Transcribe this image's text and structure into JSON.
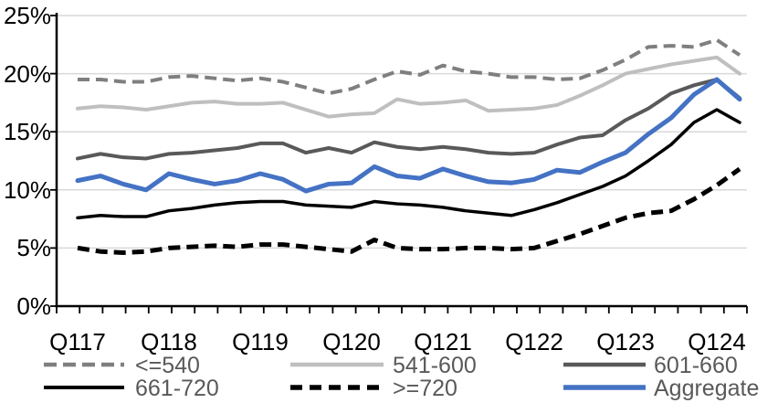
{
  "chart_data": {
    "type": "line",
    "title": "",
    "xlabel": "",
    "ylabel": "",
    "ylim": [
      0,
      25
    ],
    "y_tick_step": 5,
    "grid": "horizontal",
    "legend_position": "bottom",
    "y_ticks": [
      "0%",
      "5%",
      "10%",
      "15%",
      "20%",
      "25%"
    ],
    "x_labels": [
      "Q117",
      "Q118",
      "Q119",
      "Q120",
      "Q121",
      "Q122",
      "Q123",
      "Q124"
    ],
    "x_label_point_indices": [
      0,
      4,
      8,
      12,
      16,
      20,
      24,
      28
    ],
    "n_points": 30,
    "colors": {
      "grid": "#D9D9D9",
      "axis": "#000000",
      "legend_text": "#595959",
      "accent_blue": "#4472C4"
    },
    "series": [
      {
        "name": "<=540",
        "color": "#7F7F7F",
        "dash": "dashed",
        "width": 4,
        "values": [
          19.5,
          19.5,
          19.3,
          19.3,
          19.7,
          19.8,
          19.6,
          19.4,
          19.6,
          19.3,
          18.8,
          18.3,
          18.7,
          19.5,
          20.2,
          19.9,
          20.7,
          20.2,
          20.0,
          19.7,
          19.7,
          19.5,
          19.6,
          20.3,
          21.2,
          22.3,
          22.4,
          22.3,
          22.9,
          21.6
        ]
      },
      {
        "name": "541-600",
        "color": "#BFBFBF",
        "dash": "solid",
        "width": 4,
        "values": [
          17.0,
          17.2,
          17.1,
          16.9,
          17.2,
          17.5,
          17.6,
          17.4,
          17.4,
          17.5,
          16.9,
          16.3,
          16.5,
          16.6,
          17.8,
          17.4,
          17.5,
          17.7,
          16.8,
          16.9,
          17.0,
          17.3,
          18.1,
          19.0,
          20.0,
          20.4,
          20.8,
          21.1,
          21.4,
          20.0
        ]
      },
      {
        "name": "601-660",
        "color": "#595959",
        "dash": "solid",
        "width": 4,
        "values": [
          12.7,
          13.1,
          12.8,
          12.7,
          13.1,
          13.2,
          13.4,
          13.6,
          14.0,
          14.0,
          13.2,
          13.6,
          13.2,
          14.1,
          13.7,
          13.5,
          13.7,
          13.5,
          13.2,
          13.1,
          13.2,
          13.9,
          14.5,
          14.7,
          16.0,
          17.0,
          18.3,
          19.0,
          19.5,
          17.9
        ]
      },
      {
        "name": "661-720",
        "color": "#000000",
        "dash": "solid",
        "width": 3.5,
        "values": [
          7.6,
          7.8,
          7.7,
          7.7,
          8.2,
          8.4,
          8.7,
          8.9,
          9.0,
          9.0,
          8.7,
          8.6,
          8.5,
          9.0,
          8.8,
          8.7,
          8.5,
          8.2,
          8.0,
          7.8,
          8.3,
          8.9,
          9.6,
          10.3,
          11.2,
          12.5,
          13.9,
          15.8,
          16.9,
          15.8
        ]
      },
      {
        "name": ">=720",
        "color": "#000000",
        "dash": "dashed",
        "width": 5,
        "values": [
          5.0,
          4.7,
          4.6,
          4.7,
          5.0,
          5.1,
          5.2,
          5.1,
          5.3,
          5.3,
          5.1,
          4.9,
          4.7,
          5.7,
          5.0,
          4.9,
          4.9,
          5.0,
          5.0,
          4.9,
          5.0,
          5.6,
          6.2,
          6.9,
          7.6,
          8.0,
          8.2,
          9.2,
          10.4,
          11.8
        ]
      },
      {
        "name": "Aggregate",
        "color": "#4472C4",
        "dash": "solid",
        "width": 5,
        "values": [
          10.8,
          11.2,
          10.5,
          10.0,
          11.4,
          10.9,
          10.5,
          10.8,
          11.4,
          10.9,
          9.9,
          10.5,
          10.6,
          12.0,
          11.2,
          11.0,
          11.8,
          11.2,
          10.7,
          10.6,
          10.9,
          11.7,
          11.5,
          12.4,
          13.2,
          14.8,
          16.2,
          18.2,
          19.5,
          17.8
        ]
      }
    ]
  }
}
